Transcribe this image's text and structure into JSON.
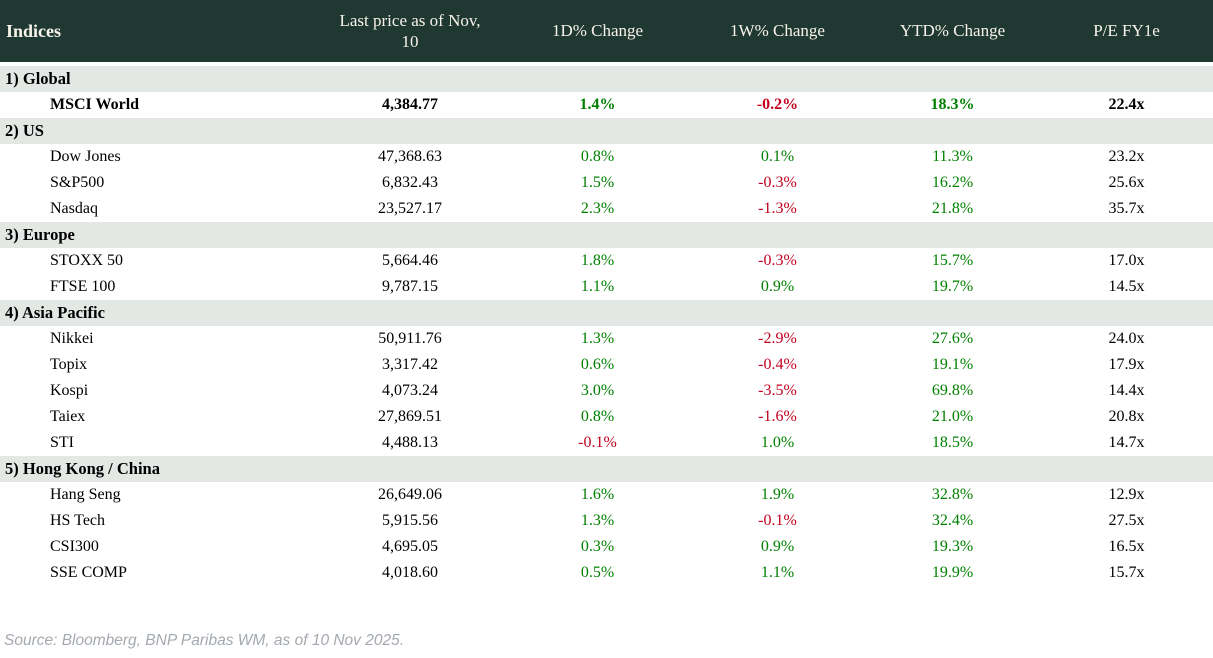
{
  "table": {
    "columns": [
      {
        "key": "name",
        "label": "Indices"
      },
      {
        "key": "price",
        "label": "Last price as of Nov, 10"
      },
      {
        "key": "d1",
        "label": "1D% Change"
      },
      {
        "key": "w1",
        "label": "1W% Change"
      },
      {
        "key": "ytd",
        "label": "YTD% Change"
      },
      {
        "key": "pe",
        "label": "P/E FY1e"
      }
    ],
    "sections": [
      {
        "label": "1) Global",
        "rows": [
          {
            "name": "MSCI World",
            "price": "4,384.77",
            "d1": "1.4%",
            "w1": "-0.2%",
            "ytd": "18.3%",
            "pe": "22.4x",
            "bold": true
          }
        ]
      },
      {
        "label": "2) US",
        "rows": [
          {
            "name": "Dow Jones",
            "price": "47,368.63",
            "d1": "0.8%",
            "w1": "0.1%",
            "ytd": "11.3%",
            "pe": "23.2x",
            "bold": false
          },
          {
            "name": "S&P500",
            "price": "6,832.43",
            "d1": "1.5%",
            "w1": "-0.3%",
            "ytd": "16.2%",
            "pe": "25.6x",
            "bold": false
          },
          {
            "name": "Nasdaq",
            "price": "23,527.17",
            "d1": "2.3%",
            "w1": "-1.3%",
            "ytd": "21.8%",
            "pe": "35.7x",
            "bold": false
          }
        ]
      },
      {
        "label": "3) Europe",
        "rows": [
          {
            "name": "STOXX 50",
            "price": "5,664.46",
            "d1": "1.8%",
            "w1": "-0.3%",
            "ytd": "15.7%",
            "pe": "17.0x",
            "bold": false
          },
          {
            "name": "FTSE 100",
            "price": "9,787.15",
            "d1": "1.1%",
            "w1": "0.9%",
            "ytd": "19.7%",
            "pe": "14.5x",
            "bold": false
          }
        ]
      },
      {
        "label": "4) Asia Pacific",
        "rows": [
          {
            "name": "Nikkei",
            "price": "50,911.76",
            "d1": "1.3%",
            "w1": "-2.9%",
            "ytd": "27.6%",
            "pe": "24.0x",
            "bold": false
          },
          {
            "name": "Topix",
            "price": "3,317.42",
            "d1": "0.6%",
            "w1": "-0.4%",
            "ytd": "19.1%",
            "pe": "17.9x",
            "bold": false
          },
          {
            "name": "Kospi",
            "price": "4,073.24",
            "d1": "3.0%",
            "w1": "-3.5%",
            "ytd": "69.8%",
            "pe": "14.4x",
            "bold": false
          },
          {
            "name": "Taiex",
            "price": "27,869.51",
            "d1": "0.8%",
            "w1": "-1.6%",
            "ytd": "21.0%",
            "pe": "20.8x",
            "bold": false
          },
          {
            "name": "STI",
            "price": "4,488.13",
            "d1": "-0.1%",
            "w1": "1.0%",
            "ytd": "18.5%",
            "pe": "14.7x",
            "bold": false
          }
        ]
      },
      {
        "label": "5) Hong Kong / China",
        "rows": [
          {
            "name": "Hang Seng",
            "price": "26,649.06",
            "d1": "1.6%",
            "w1": "1.9%",
            "ytd": "32.8%",
            "pe": "12.9x",
            "bold": false
          },
          {
            "name": "HS Tech",
            "price": "5,915.56",
            "d1": "1.3%",
            "w1": "-0.1%",
            "ytd": "32.4%",
            "pe": "27.5x",
            "bold": false
          },
          {
            "name": "CSI300",
            "price": "4,695.05",
            "d1": "0.3%",
            "w1": "0.9%",
            "ytd": "19.3%",
            "pe": "16.5x",
            "bold": false
          },
          {
            "name": "SSE COMP",
            "price": "4,018.60",
            "d1": "0.5%",
            "w1": "1.1%",
            "ytd": "19.9%",
            "pe": "15.7x",
            "bold": false
          }
        ]
      }
    ]
  },
  "footer": {
    "source_note": "Source: Bloomberg, BNP Paribas WM, as of 10 Nov 2025."
  },
  "colors": {
    "header_bg": "#1f3831",
    "header_text": "#f7f3ea",
    "section_bg": "#e4e8e4",
    "positive": "#008000",
    "negative": "#c3001e",
    "text": "#000000",
    "footer_text": "#a3a9af"
  }
}
